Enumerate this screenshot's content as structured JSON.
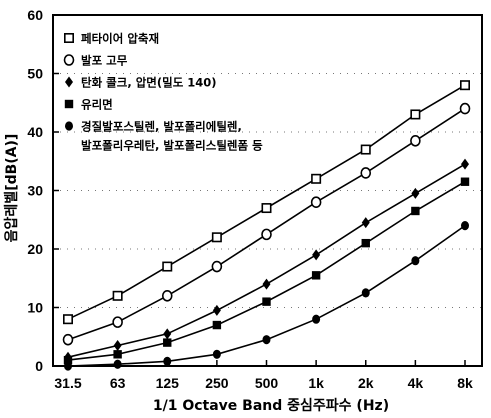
{
  "chart_data": {
    "type": "line",
    "xlabel": "1/1 Octave Band 중심주파수 (Hz)",
    "ylabel": "음압레벨[dB(A)]",
    "categories": [
      "31.5",
      "63",
      "125",
      "250",
      "500",
      "1k",
      "2k",
      "4k",
      "8k"
    ],
    "ylim": [
      0,
      60
    ],
    "yticks": [
      0,
      10,
      20,
      30,
      40,
      50,
      60
    ],
    "grid": "dotted horizontal",
    "legend_position": "top-left",
    "series": [
      {
        "name": "페타이어 압축재",
        "marker": "open-square",
        "values": [
          8,
          12,
          17,
          22,
          27,
          32,
          37,
          43,
          48
        ]
      },
      {
        "name": "발포 고무",
        "marker": "open-circle",
        "values": [
          4.5,
          7.5,
          12,
          17,
          22.5,
          28,
          33,
          38.5,
          44
        ]
      },
      {
        "name": "탄화 콜크, 압면(밀도 140)",
        "marker": "filled-diamond",
        "values": [
          1.5,
          3.5,
          5.5,
          9.5,
          14,
          19,
          24.5,
          29.5,
          34.5
        ]
      },
      {
        "name": "유리면",
        "marker": "filled-square",
        "values": [
          1,
          2,
          4,
          7,
          11,
          15.5,
          21,
          26.5,
          31.5
        ]
      },
      {
        "name": "경질발포스틸렌, 발포폴리에틸렌,",
        "name_line2": "발포폴리우레탄, 발포폴리스틸렌폼 등",
        "marker": "filled-circle",
        "values": [
          0,
          0.3,
          0.8,
          2,
          4.5,
          8,
          12.5,
          18,
          24
        ]
      }
    ]
  }
}
